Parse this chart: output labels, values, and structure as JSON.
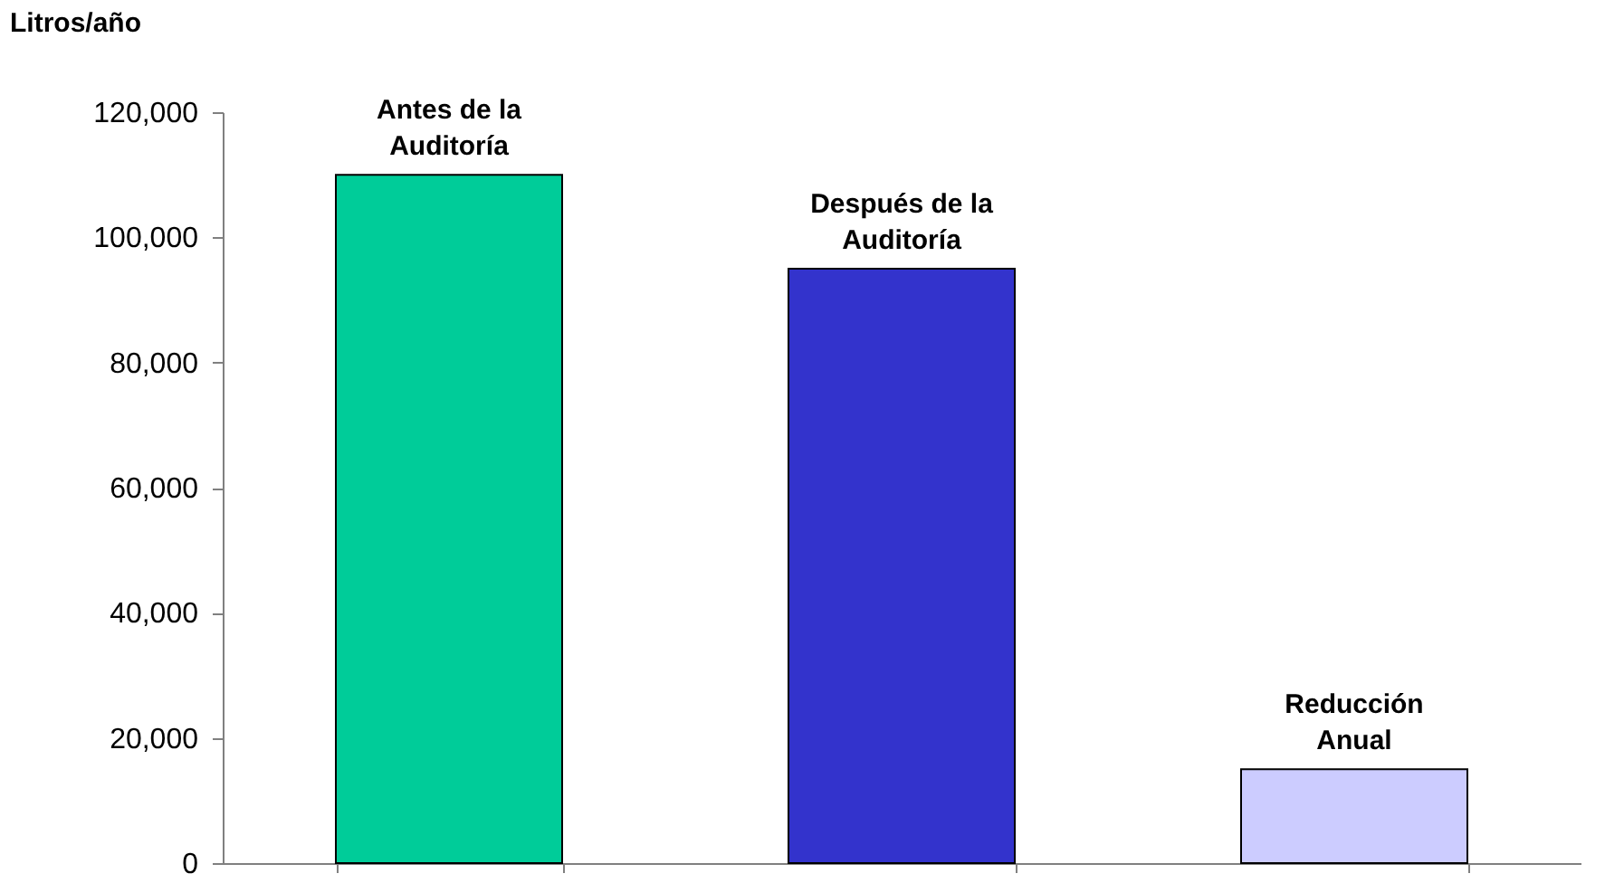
{
  "chart_data": {
    "type": "bar",
    "ylabel": "Litros/año",
    "categories": [
      "Antes de la\nAuditoría",
      "Después de la\nAuditoría",
      "Reducción\nAnual"
    ],
    "values": [
      110000,
      95000,
      15000
    ],
    "colors": [
      "#00cc99",
      "#3333cc",
      "#ccccff"
    ],
    "ylim": [
      0,
      120000
    ],
    "yticks": [
      0,
      {
        "value": 20000,
        "label": "20,000"
      },
      {
        "value": 40000,
        "label": "40,000"
      },
      {
        "value": 60000,
        "label": "60,000"
      },
      {
        "value": 80000,
        "label": "80,000"
      },
      {
        "value": 100000,
        "label": "100,000"
      },
      {
        "value": 120000,
        "label": "120,000"
      }
    ],
    "grid": false
  }
}
